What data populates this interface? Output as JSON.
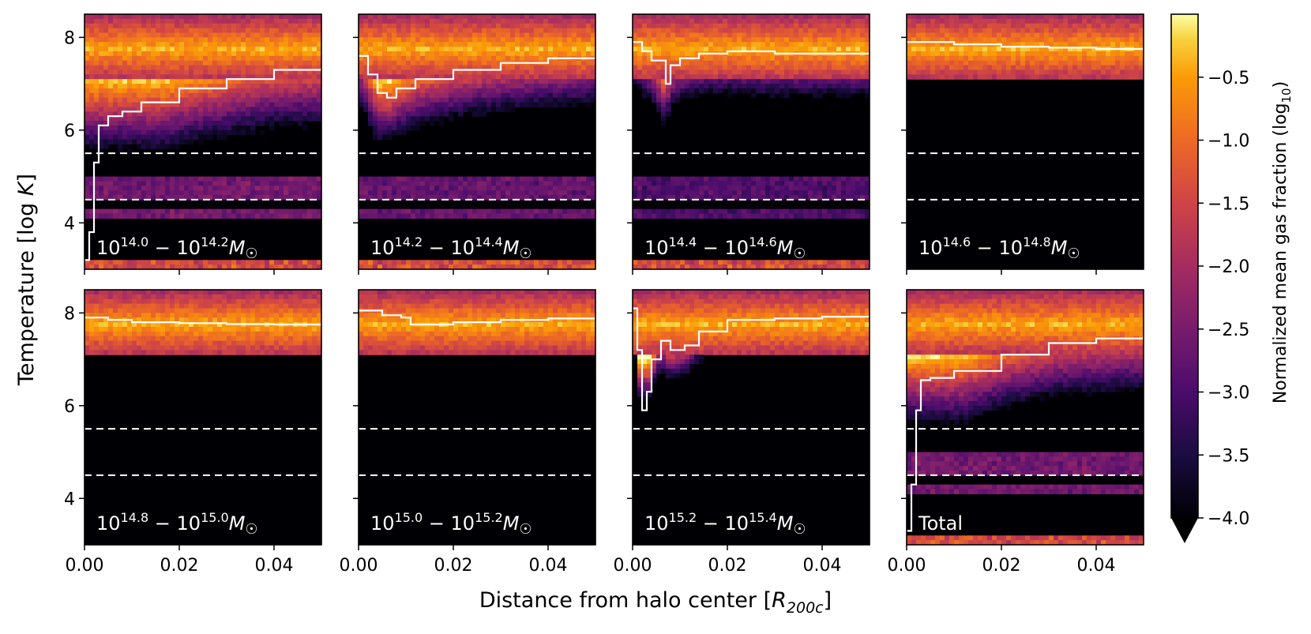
{
  "chart_data": {
    "type": "heatmap",
    "xlabel": "Distance from halo center [R200c]",
    "ylabel": "Temperature [log K]",
    "xlim": [
      0.0,
      0.05
    ],
    "ylim": [
      3.0,
      8.5
    ],
    "xticks": [
      0.0,
      0.02,
      0.04
    ],
    "xtick_labels": [
      "0.00",
      "0.02",
      "0.04"
    ],
    "yticks": [
      4,
      6,
      8
    ],
    "ytick_labels": [
      "4",
      "6",
      "8"
    ],
    "dashed_lines_y": [
      5.5,
      4.5
    ],
    "colormap": "inferno",
    "colorbar": {
      "label": "Normalized mean gas fraction (log10)",
      "range": [
        -4.0,
        0.0
      ],
      "ticks": [
        -0.5,
        -1.0,
        -1.5,
        -2.0,
        -2.5,
        -3.0,
        -3.5,
        -4.0
      ],
      "tick_labels": [
        "−0.5",
        "−1.0",
        "−1.5",
        "−2.0",
        "−2.5",
        "−3.0",
        "−3.5",
        "−4.0"
      ],
      "extend": "min"
    },
    "panels": [
      {
        "label": "10^14.0 − 10^14.2 M☉",
        "lo": "14.0",
        "hi": "14.2",
        "has_cool": true,
        "cool_strength": 1.0,
        "median_line": {
          "x": [
            0.0,
            0.001,
            0.002,
            0.003,
            0.005,
            0.008,
            0.012,
            0.02,
            0.03,
            0.04,
            0.05
          ],
          "y": [
            3.2,
            3.8,
            5.3,
            6.1,
            6.3,
            6.4,
            6.6,
            6.9,
            7.1,
            7.3,
            7.35
          ]
        }
      },
      {
        "label": "10^14.2 − 10^14.4 M☉",
        "lo": "14.2",
        "hi": "14.4",
        "has_cool": true,
        "cool_strength": 0.9,
        "median_line": {
          "x": [
            0.0,
            0.002,
            0.004,
            0.006,
            0.008,
            0.012,
            0.02,
            0.03,
            0.04,
            0.05
          ],
          "y": [
            7.6,
            7.2,
            6.8,
            6.7,
            6.9,
            7.1,
            7.3,
            7.45,
            7.55,
            7.6
          ]
        }
      },
      {
        "label": "10^14.4 − 10^14.6 M☉",
        "lo": "14.4",
        "hi": "14.6",
        "has_cool": true,
        "cool_strength": 0.7,
        "median_line": {
          "x": [
            0.0,
            0.002,
            0.004,
            0.007,
            0.008,
            0.01,
            0.014,
            0.02,
            0.03,
            0.04,
            0.05
          ],
          "y": [
            7.9,
            7.7,
            7.5,
            7.0,
            7.4,
            7.55,
            7.65,
            7.7,
            7.65,
            7.65,
            7.65
          ]
        }
      },
      {
        "label": "10^14.6 − 10^14.8 M☉",
        "lo": "14.6",
        "hi": "14.8",
        "has_cool": false,
        "cool_strength": 0.15,
        "median_line": {
          "x": [
            0.0,
            0.01,
            0.02,
            0.03,
            0.04,
            0.05
          ],
          "y": [
            7.9,
            7.85,
            7.8,
            7.78,
            7.75,
            7.72
          ]
        }
      },
      {
        "label": "10^14.8 − 10^15.0 M☉",
        "lo": "14.8",
        "hi": "15.0",
        "has_cool": false,
        "cool_strength": 0.0,
        "median_line": {
          "x": [
            0.0,
            0.005,
            0.01,
            0.02,
            0.03,
            0.04,
            0.05
          ],
          "y": [
            7.9,
            7.85,
            7.8,
            7.78,
            7.76,
            7.75,
            7.75
          ]
        }
      },
      {
        "label": "10^15.0 − 10^15.2 M☉",
        "lo": "15.0",
        "hi": "15.2",
        "has_cool": false,
        "cool_strength": 0.1,
        "median_line": {
          "x": [
            0.0,
            0.005,
            0.009,
            0.011,
            0.02,
            0.03,
            0.04,
            0.05
          ],
          "y": [
            8.05,
            7.95,
            7.9,
            7.75,
            7.8,
            7.85,
            7.88,
            7.9
          ]
        }
      },
      {
        "label": "10^15.2 − 10^15.4 M☉",
        "lo": "15.2",
        "hi": "15.4",
        "has_cool": false,
        "cool_strength": 0.4,
        "median_line": {
          "x": [
            0.0,
            0.001,
            0.002,
            0.003,
            0.004,
            0.006,
            0.008,
            0.011,
            0.014,
            0.02,
            0.03,
            0.04,
            0.05
          ],
          "y": [
            8.1,
            7.2,
            5.9,
            6.3,
            7.0,
            7.4,
            7.2,
            7.3,
            7.6,
            7.85,
            7.88,
            7.92,
            7.95
          ]
        }
      },
      {
        "label": "Total",
        "lo": "",
        "hi": "",
        "has_cool": true,
        "cool_strength": 1.0,
        "median_line": {
          "x": [
            0.0,
            0.001,
            0.002,
            0.003,
            0.005,
            0.01,
            0.02,
            0.03,
            0.04,
            0.05
          ],
          "y": [
            3.3,
            4.3,
            5.9,
            6.55,
            6.6,
            6.75,
            7.1,
            7.35,
            7.45,
            7.5
          ]
        }
      }
    ]
  }
}
